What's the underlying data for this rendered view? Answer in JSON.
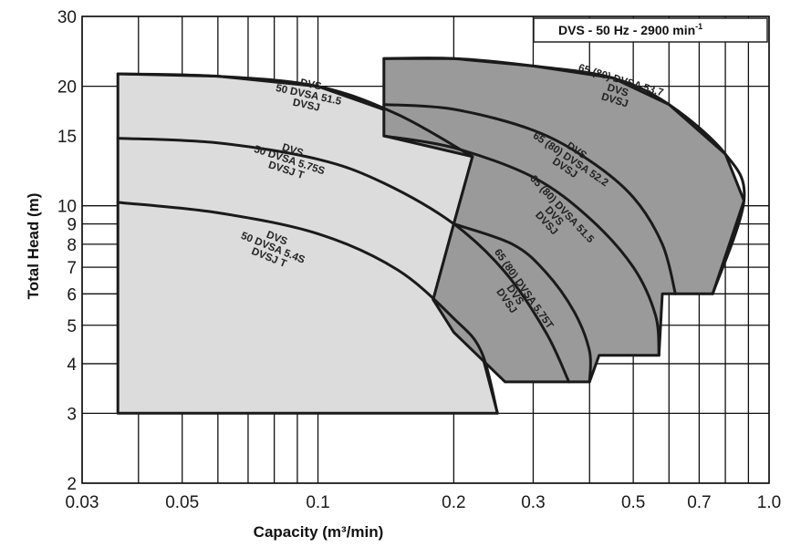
{
  "chart_data": {
    "type": "area",
    "title": "DVS - 50 Hz - 2900 min",
    "title_superscript": "-1",
    "xlabel": "Capacity (m³/min)",
    "ylabel": "Total Head (m)",
    "x_scale": "log",
    "y_scale": "log",
    "xlim": [
      0.03,
      1.0
    ],
    "ylim": [
      2,
      30
    ],
    "x_tick_labels": [
      "0.03",
      "0.05",
      "0.1",
      "0.2",
      "0.3",
      "0.5",
      "0.7",
      "1.0"
    ],
    "y_tick_labels": [
      "2",
      "3",
      "4",
      "5",
      "6",
      "7",
      "8",
      "9",
      "10",
      "15",
      "20",
      "30"
    ],
    "grid": true,
    "regions": [
      {
        "group": "50",
        "fill": "#dcdcdc",
        "boundary": [
          [
            0.036,
            3.0
          ],
          [
            0.036,
            21.5
          ],
          [
            0.06,
            21.2
          ],
          [
            0.1,
            20.0
          ],
          [
            0.15,
            17.0
          ],
          [
            0.22,
            13.3
          ],
          [
            0.2,
            9.0
          ],
          [
            0.18,
            5.8
          ],
          [
            0.2,
            5.2
          ],
          [
            0.23,
            4.3
          ],
          [
            0.25,
            3.0
          ]
        ]
      },
      {
        "group": "65",
        "fill": "#9a9a9a",
        "boundary": [
          [
            0.14,
            23.5
          ],
          [
            0.2,
            23.5
          ],
          [
            0.3,
            22.5
          ],
          [
            0.45,
            21.0
          ],
          [
            0.6,
            18.0
          ],
          [
            0.8,
            13.5
          ],
          [
            0.88,
            10.3
          ],
          [
            0.75,
            6.0
          ],
          [
            0.58,
            6.0
          ],
          [
            0.57,
            4.2
          ],
          [
            0.42,
            4.2
          ],
          [
            0.4,
            3.6
          ],
          [
            0.26,
            3.6
          ],
          [
            0.2,
            4.8
          ],
          [
            0.18,
            5.8
          ],
          [
            0.2,
            9.0
          ],
          [
            0.22,
            13.3
          ],
          [
            0.14,
            15.0
          ]
        ]
      }
    ],
    "series": [
      {
        "labels": [
          "DVS",
          "50 DVSA 51.5",
          "DVSJ"
        ],
        "label_angle": 12,
        "label_x": 0.095,
        "label_y": 18.7,
        "points": [
          [
            0.036,
            21.5
          ],
          [
            0.06,
            21.2
          ],
          [
            0.1,
            20.0
          ],
          [
            0.15,
            17.0
          ],
          [
            0.22,
            13.3
          ]
        ]
      },
      {
        "labels": [
          "DVS",
          "50 DVSA 5.75S",
          "DVSJ      T"
        ],
        "label_angle": 18,
        "label_x": 0.086,
        "label_y": 12.8,
        "points": [
          [
            0.036,
            14.8
          ],
          [
            0.06,
            14.4
          ],
          [
            0.1,
            13.1
          ],
          [
            0.14,
            11.4
          ],
          [
            0.2,
            9.0
          ],
          [
            0.26,
            6.8
          ],
          [
            0.32,
            4.8
          ],
          [
            0.36,
            3.6
          ]
        ]
      },
      {
        "labels": [
          "DVS",
          "50 DVSA 5.4S",
          "DVSJ      T"
        ],
        "label_angle": 22,
        "label_x": 0.079,
        "label_y": 7.7,
        "points": [
          [
            0.036,
            10.2
          ],
          [
            0.06,
            9.6
          ],
          [
            0.1,
            8.5
          ],
          [
            0.15,
            6.9
          ],
          [
            0.2,
            5.2
          ],
          [
            0.23,
            4.3
          ],
          [
            0.25,
            3.0
          ]
        ]
      },
      {
        "labels": [
          "65 (80) DVSA 53.7",
          "DVS",
          "DVSJ"
        ],
        "label_angle": 17,
        "label_x": 0.46,
        "label_y": 19.2,
        "points": [
          [
            0.14,
            23.5
          ],
          [
            0.2,
            23.5
          ],
          [
            0.3,
            22.5
          ],
          [
            0.45,
            21.0
          ],
          [
            0.6,
            18.0
          ],
          [
            0.8,
            13.5
          ],
          [
            0.88,
            10.3
          ],
          [
            0.75,
            6.0
          ]
        ]
      },
      {
        "labels": [
          "DVS",
          "65 (80) DVSA 52.2",
          "DVSJ"
        ],
        "label_angle": 34,
        "label_x": 0.36,
        "label_y": 12.9,
        "points": [
          [
            0.14,
            18.0
          ],
          [
            0.2,
            17.5
          ],
          [
            0.3,
            15.5
          ],
          [
            0.4,
            13.0
          ],
          [
            0.5,
            10.5
          ],
          [
            0.58,
            8.0
          ],
          [
            0.62,
            6.0
          ]
        ]
      },
      {
        "labels": [
          "65 (80) DVSA 51.5",
          "DVS",
          "DVSJ"
        ],
        "label_angle": 47,
        "label_x": 0.33,
        "label_y": 9.3,
        "points": [
          [
            0.14,
            15.0
          ],
          [
            0.2,
            14.0
          ],
          [
            0.3,
            11.8
          ],
          [
            0.4,
            9.3
          ],
          [
            0.5,
            7.0
          ],
          [
            0.56,
            5.3
          ],
          [
            0.57,
            4.2
          ]
        ]
      },
      {
        "labels": [
          "65 (80) DVSA 5.75T",
          "DVS",
          "DVSJ"
        ],
        "label_angle": 55,
        "label_x": 0.27,
        "label_y": 5.9,
        "points": [
          [
            0.2,
            9.0
          ],
          [
            0.27,
            8.0
          ],
          [
            0.32,
            6.8
          ],
          [
            0.37,
            5.4
          ],
          [
            0.4,
            4.3
          ],
          [
            0.4,
            3.6
          ]
        ]
      }
    ]
  }
}
